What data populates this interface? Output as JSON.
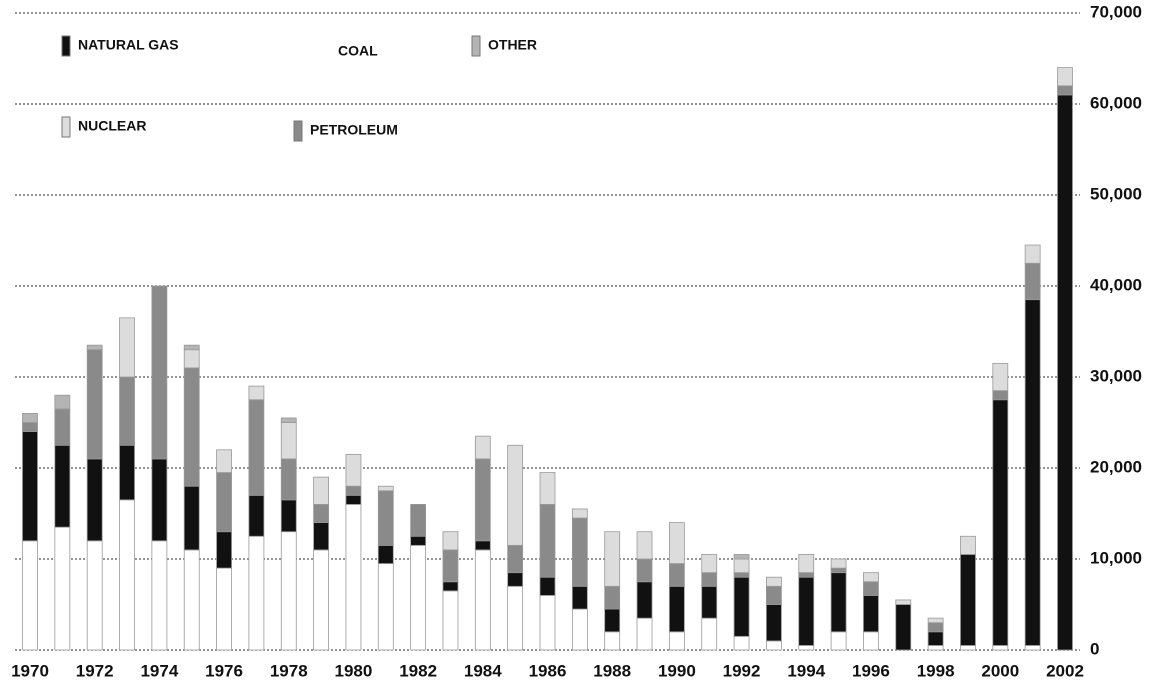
{
  "chart_data": {
    "type": "stacked-bar",
    "categories": [
      "1970",
      null,
      "1972",
      null,
      "1974",
      null,
      "1976",
      null,
      "1978",
      null,
      "1980",
      null,
      "1982",
      null,
      "1984",
      null,
      "1986",
      null,
      "1988",
      null,
      "1990",
      null,
      "1992",
      null,
      "1994",
      null,
      "1996",
      null,
      "1998",
      null,
      "2000",
      null,
      "2002"
    ],
    "series": [
      {
        "name": "COAL",
        "color": "#ffffff",
        "values": [
          12000,
          13500,
          12000,
          16500,
          12000,
          11000,
          9000,
          12500,
          13000,
          11000,
          16000,
          9500,
          11500,
          6500,
          11000,
          7000,
          6000,
          4500,
          2000,
          3500,
          2000,
          3500,
          1500,
          1000,
          500,
          2000,
          2000,
          0,
          500,
          500,
          500,
          500,
          0
        ]
      },
      {
        "name": "NATURAL GAS",
        "color": "#111111",
        "values": [
          12000,
          9000,
          9000,
          6000,
          9000,
          7000,
          4000,
          4500,
          3500,
          3000,
          1000,
          2000,
          1000,
          1000,
          1000,
          1500,
          2000,
          2500,
          2500,
          4000,
          5000,
          3500,
          6500,
          4000,
          7500,
          6500,
          4000,
          5000,
          1500,
          10000,
          27000,
          38000,
          61000
        ]
      },
      {
        "name": "PETROLEUM",
        "color": "#8a8a8a",
        "values": [
          1000,
          4000,
          12000,
          7500,
          19000,
          13000,
          6500,
          10500,
          4500,
          2000,
          1000,
          6000,
          3500,
          3500,
          9000,
          3000,
          8000,
          7500,
          2500,
          2500,
          2500,
          1500,
          500,
          2000,
          500,
          500,
          1500,
          0,
          1000,
          0,
          1000,
          4000,
          1000
        ]
      },
      {
        "name": "NUCLEAR",
        "color": "#dcdcdc",
        "values": [
          0,
          0,
          0,
          6500,
          0,
          2000,
          2500,
          1500,
          4000,
          3000,
          3500,
          500,
          0,
          2000,
          2500,
          11000,
          3500,
          1000,
          6000,
          3000,
          4500,
          2000,
          1500,
          1000,
          2000,
          1000,
          1000,
          500,
          500,
          2000,
          3000,
          2000,
          2000
        ]
      },
      {
        "name": "OTHER",
        "color": "#b4b4b4",
        "values": [
          1000,
          1500,
          500,
          0,
          0,
          500,
          0,
          0,
          500,
          0,
          0,
          0,
          0,
          0,
          0,
          0,
          0,
          0,
          0,
          0,
          0,
          0,
          500,
          0,
          0,
          0,
          0,
          0,
          0,
          0,
          0,
          0,
          0
        ]
      }
    ],
    "ylim": [
      0,
      70000
    ],
    "yticks": [
      0,
      {
        "value": 10000,
        "label": "10,000"
      },
      {
        "value": 20000,
        "label": "20,000"
      },
      {
        "value": 30000,
        "label": "30,000"
      },
      {
        "value": 40000,
        "label": "40,000"
      },
      {
        "value": 50000,
        "label": "50,000"
      },
      {
        "value": 60000,
        "label": "60,000"
      },
      {
        "value": 70000,
        "label": "70,000"
      }
    ],
    "grid": true,
    "legend": "top-left"
  }
}
